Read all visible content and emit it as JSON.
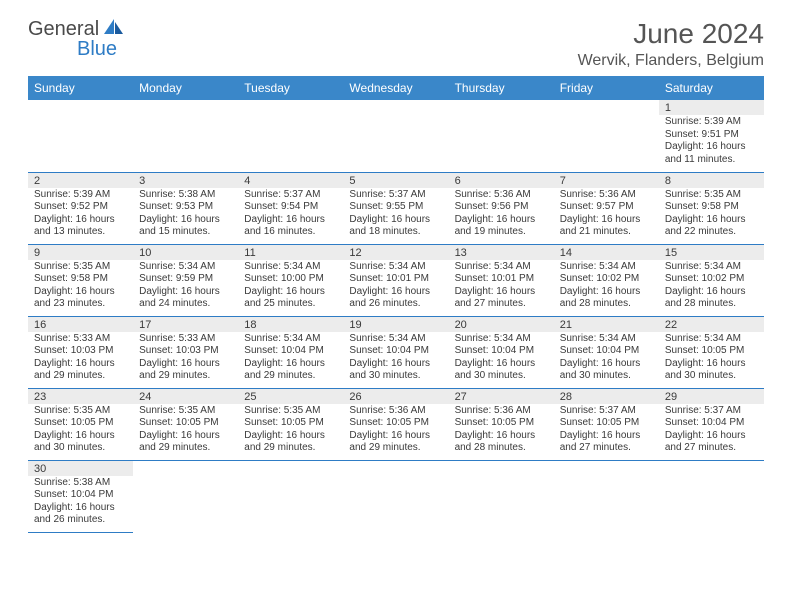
{
  "logo": {
    "text_general": "General",
    "text_blue": "Blue"
  },
  "title": "June 2024",
  "location": "Wervik, Flanders, Belgium",
  "colors": {
    "header_bg": "#3a87c9",
    "header_text": "#ffffff",
    "daynum_bg": "#ececec",
    "border": "#2e7cc5",
    "title_text": "#555555",
    "body_text": "#3a3a3a"
  },
  "days_of_week": [
    "Sunday",
    "Monday",
    "Tuesday",
    "Wednesday",
    "Thursday",
    "Friday",
    "Saturday"
  ],
  "weeks": [
    [
      null,
      null,
      null,
      null,
      null,
      null,
      {
        "n": "1",
        "sr": "Sunrise: 5:39 AM",
        "ss": "Sunset: 9:51 PM",
        "dl1": "Daylight: 16 hours",
        "dl2": "and 11 minutes."
      }
    ],
    [
      {
        "n": "2",
        "sr": "Sunrise: 5:39 AM",
        "ss": "Sunset: 9:52 PM",
        "dl1": "Daylight: 16 hours",
        "dl2": "and 13 minutes."
      },
      {
        "n": "3",
        "sr": "Sunrise: 5:38 AM",
        "ss": "Sunset: 9:53 PM",
        "dl1": "Daylight: 16 hours",
        "dl2": "and 15 minutes."
      },
      {
        "n": "4",
        "sr": "Sunrise: 5:37 AM",
        "ss": "Sunset: 9:54 PM",
        "dl1": "Daylight: 16 hours",
        "dl2": "and 16 minutes."
      },
      {
        "n": "5",
        "sr": "Sunrise: 5:37 AM",
        "ss": "Sunset: 9:55 PM",
        "dl1": "Daylight: 16 hours",
        "dl2": "and 18 minutes."
      },
      {
        "n": "6",
        "sr": "Sunrise: 5:36 AM",
        "ss": "Sunset: 9:56 PM",
        "dl1": "Daylight: 16 hours",
        "dl2": "and 19 minutes."
      },
      {
        "n": "7",
        "sr": "Sunrise: 5:36 AM",
        "ss": "Sunset: 9:57 PM",
        "dl1": "Daylight: 16 hours",
        "dl2": "and 21 minutes."
      },
      {
        "n": "8",
        "sr": "Sunrise: 5:35 AM",
        "ss": "Sunset: 9:58 PM",
        "dl1": "Daylight: 16 hours",
        "dl2": "and 22 minutes."
      }
    ],
    [
      {
        "n": "9",
        "sr": "Sunrise: 5:35 AM",
        "ss": "Sunset: 9:58 PM",
        "dl1": "Daylight: 16 hours",
        "dl2": "and 23 minutes."
      },
      {
        "n": "10",
        "sr": "Sunrise: 5:34 AM",
        "ss": "Sunset: 9:59 PM",
        "dl1": "Daylight: 16 hours",
        "dl2": "and 24 minutes."
      },
      {
        "n": "11",
        "sr": "Sunrise: 5:34 AM",
        "ss": "Sunset: 10:00 PM",
        "dl1": "Daylight: 16 hours",
        "dl2": "and 25 minutes."
      },
      {
        "n": "12",
        "sr": "Sunrise: 5:34 AM",
        "ss": "Sunset: 10:01 PM",
        "dl1": "Daylight: 16 hours",
        "dl2": "and 26 minutes."
      },
      {
        "n": "13",
        "sr": "Sunrise: 5:34 AM",
        "ss": "Sunset: 10:01 PM",
        "dl1": "Daylight: 16 hours",
        "dl2": "and 27 minutes."
      },
      {
        "n": "14",
        "sr": "Sunrise: 5:34 AM",
        "ss": "Sunset: 10:02 PM",
        "dl1": "Daylight: 16 hours",
        "dl2": "and 28 minutes."
      },
      {
        "n": "15",
        "sr": "Sunrise: 5:34 AM",
        "ss": "Sunset: 10:02 PM",
        "dl1": "Daylight: 16 hours",
        "dl2": "and 28 minutes."
      }
    ],
    [
      {
        "n": "16",
        "sr": "Sunrise: 5:33 AM",
        "ss": "Sunset: 10:03 PM",
        "dl1": "Daylight: 16 hours",
        "dl2": "and 29 minutes."
      },
      {
        "n": "17",
        "sr": "Sunrise: 5:33 AM",
        "ss": "Sunset: 10:03 PM",
        "dl1": "Daylight: 16 hours",
        "dl2": "and 29 minutes."
      },
      {
        "n": "18",
        "sr": "Sunrise: 5:34 AM",
        "ss": "Sunset: 10:04 PM",
        "dl1": "Daylight: 16 hours",
        "dl2": "and 29 minutes."
      },
      {
        "n": "19",
        "sr": "Sunrise: 5:34 AM",
        "ss": "Sunset: 10:04 PM",
        "dl1": "Daylight: 16 hours",
        "dl2": "and 30 minutes."
      },
      {
        "n": "20",
        "sr": "Sunrise: 5:34 AM",
        "ss": "Sunset: 10:04 PM",
        "dl1": "Daylight: 16 hours",
        "dl2": "and 30 minutes."
      },
      {
        "n": "21",
        "sr": "Sunrise: 5:34 AM",
        "ss": "Sunset: 10:04 PM",
        "dl1": "Daylight: 16 hours",
        "dl2": "and 30 minutes."
      },
      {
        "n": "22",
        "sr": "Sunrise: 5:34 AM",
        "ss": "Sunset: 10:05 PM",
        "dl1": "Daylight: 16 hours",
        "dl2": "and 30 minutes."
      }
    ],
    [
      {
        "n": "23",
        "sr": "Sunrise: 5:35 AM",
        "ss": "Sunset: 10:05 PM",
        "dl1": "Daylight: 16 hours",
        "dl2": "and 30 minutes."
      },
      {
        "n": "24",
        "sr": "Sunrise: 5:35 AM",
        "ss": "Sunset: 10:05 PM",
        "dl1": "Daylight: 16 hours",
        "dl2": "and 29 minutes."
      },
      {
        "n": "25",
        "sr": "Sunrise: 5:35 AM",
        "ss": "Sunset: 10:05 PM",
        "dl1": "Daylight: 16 hours",
        "dl2": "and 29 minutes."
      },
      {
        "n": "26",
        "sr": "Sunrise: 5:36 AM",
        "ss": "Sunset: 10:05 PM",
        "dl1": "Daylight: 16 hours",
        "dl2": "and 29 minutes."
      },
      {
        "n": "27",
        "sr": "Sunrise: 5:36 AM",
        "ss": "Sunset: 10:05 PM",
        "dl1": "Daylight: 16 hours",
        "dl2": "and 28 minutes."
      },
      {
        "n": "28",
        "sr": "Sunrise: 5:37 AM",
        "ss": "Sunset: 10:05 PM",
        "dl1": "Daylight: 16 hours",
        "dl2": "and 27 minutes."
      },
      {
        "n": "29",
        "sr": "Sunrise: 5:37 AM",
        "ss": "Sunset: 10:04 PM",
        "dl1": "Daylight: 16 hours",
        "dl2": "and 27 minutes."
      }
    ],
    [
      {
        "n": "30",
        "sr": "Sunrise: 5:38 AM",
        "ss": "Sunset: 10:04 PM",
        "dl1": "Daylight: 16 hours",
        "dl2": "and 26 minutes."
      },
      null,
      null,
      null,
      null,
      null,
      null
    ]
  ]
}
